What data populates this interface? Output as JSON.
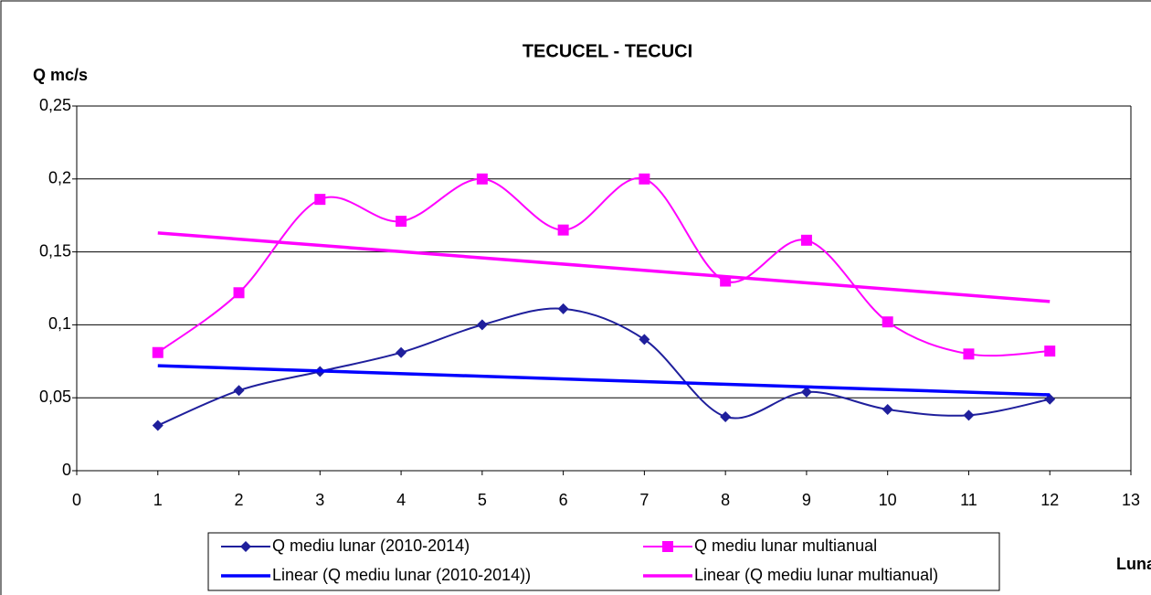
{
  "chart_data": {
    "type": "line",
    "title": "TECUCEL - TECUCI",
    "y_label": "Q mc/s",
    "x_label": "Luna",
    "xlim": [
      0,
      13
    ],
    "xticks": [
      0,
      1,
      2,
      3,
      4,
      5,
      6,
      7,
      8,
      9,
      10,
      11,
      12,
      13
    ],
    "ylim": [
      0,
      0.25
    ],
    "yticks": [
      0,
      {
        "value": 0.05,
        "label": "0,05"
      },
      {
        "value": 0.1,
        "label": "0,1"
      },
      {
        "value": 0.15,
        "label": "0,15"
      },
      {
        "value": 0.2,
        "label": "0,2"
      },
      {
        "value": 0.25,
        "label": "0,25"
      }
    ],
    "grid": true,
    "legend": "bottom",
    "series": [
      {
        "name": "Q mediu lunar (2010-2014)",
        "color": "#1f1f9c",
        "marker": "diamond",
        "smooth": true,
        "x": [
          1,
          2,
          3,
          4,
          5,
          6,
          7,
          8,
          9,
          10,
          11,
          12
        ],
        "values": [
          0.031,
          0.055,
          0.068,
          0.081,
          0.1,
          0.111,
          0.09,
          0.037,
          0.054,
          0.042,
          0.038,
          0.049
        ]
      },
      {
        "name": "Q mediu lunar multianual",
        "color": "#ff00ff",
        "marker": "square",
        "smooth": true,
        "x": [
          1,
          2,
          3,
          4,
          5,
          6,
          7,
          8,
          9,
          10,
          11,
          12
        ],
        "values": [
          0.081,
          0.122,
          0.186,
          0.171,
          0.2,
          0.165,
          0.2,
          0.13,
          0.158,
          0.102,
          0.08,
          0.082
        ]
      },
      {
        "name": "Linear (Q mediu lunar (2010-2014))",
        "color": "#0000ff",
        "marker": "none",
        "smooth": false,
        "x": [
          1,
          12
        ],
        "values": [
          0.072,
          0.052
        ]
      },
      {
        "name": "Linear (Q mediu lunar multianual)",
        "color": "#ff00ff",
        "marker": "none",
        "smooth": false,
        "x": [
          1,
          12
        ],
        "values": [
          0.163,
          0.116
        ]
      }
    ]
  }
}
